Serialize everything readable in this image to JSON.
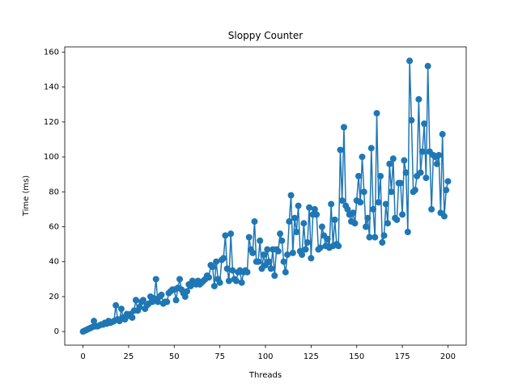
{
  "chart_data": {
    "type": "line",
    "title": "Sloppy Counter",
    "x_label": "Threads",
    "y_label": "Time (ms)",
    "color": "#1f77b4",
    "marker": "o",
    "x": [
      0,
      1,
      2,
      3,
      4,
      5,
      6,
      7,
      8,
      9,
      10,
      11,
      12,
      13,
      14,
      15,
      16,
      17,
      18,
      19,
      20,
      21,
      22,
      23,
      24,
      25,
      26,
      27,
      28,
      29,
      30,
      31,
      32,
      33,
      34,
      35,
      36,
      37,
      38,
      39,
      40,
      41,
      42,
      43,
      44,
      45,
      46,
      47,
      48,
      49,
      50,
      51,
      52,
      53,
      54,
      55,
      56,
      57,
      58,
      59,
      60,
      61,
      62,
      63,
      64,
      65,
      66,
      67,
      68,
      69,
      70,
      71,
      72,
      73,
      74,
      75,
      76,
      77,
      78,
      79,
      80,
      81,
      82,
      83,
      84,
      85,
      86,
      87,
      88,
      89,
      90,
      91,
      92,
      93,
      94,
      95,
      96,
      97,
      98,
      99,
      100,
      101,
      102,
      103,
      104,
      105,
      106,
      107,
      108,
      109,
      110,
      111,
      112,
      113,
      114,
      115,
      116,
      117,
      118,
      119,
      120,
      121,
      122,
      123,
      124,
      125,
      126,
      127,
      128,
      129,
      130,
      131,
      132,
      133,
      134,
      135,
      136,
      137,
      138,
      139,
      140,
      141,
      142,
      143,
      144,
      145,
      146,
      147,
      148,
      149,
      150,
      151,
      152,
      153,
      154,
      155,
      156,
      157,
      158,
      159,
      160,
      161,
      162,
      163,
      164,
      165,
      166,
      167,
      168,
      169,
      170,
      171,
      172,
      173,
      174,
      175,
      176,
      177,
      178,
      179,
      180,
      181,
      182,
      183,
      184,
      185,
      186,
      187,
      188,
      189,
      190,
      191,
      192,
      193,
      194,
      195,
      196,
      197,
      198,
      199,
      200
    ],
    "values": [
      0,
      0.5,
      1,
      1.5,
      2,
      2.5,
      6,
      3,
      3,
      3.5,
      4,
      4,
      5,
      4.5,
      6,
      5,
      5.5,
      6,
      15,
      7,
      6,
      13,
      8,
      7,
      10,
      9,
      10,
      8,
      12,
      18,
      12,
      14,
      17,
      18,
      13,
      15,
      16,
      20,
      17,
      19,
      30,
      17,
      20,
      21,
      16,
      17,
      17,
      22,
      23,
      24,
      24,
      18,
      25,
      30,
      24,
      22,
      20,
      23,
      27,
      26,
      29,
      28,
      27,
      29,
      27,
      28,
      29,
      30,
      32,
      31,
      38,
      37,
      26,
      40,
      30,
      28,
      41,
      42,
      55,
      36,
      29,
      56,
      35,
      30,
      29,
      34,
      35,
      28,
      34,
      35,
      34,
      54,
      47,
      45,
      63,
      40,
      40,
      52,
      36,
      44,
      38,
      47,
      40,
      36,
      47,
      32,
      47,
      46,
      56,
      52,
      40,
      34,
      44,
      63,
      78,
      45,
      65,
      57,
      72,
      46,
      44,
      62,
      47,
      51,
      71,
      42,
      67,
      70,
      67,
      47,
      48,
      60,
      55,
      49,
      53,
      48,
      73,
      49,
      64,
      50,
      49,
      104,
      75,
      117,
      72,
      70,
      67,
      63,
      68,
      62,
      75,
      89,
      74,
      100,
      80,
      60,
      65,
      54,
      105,
      70,
      54,
      125,
      74,
      89,
      51,
      55,
      73,
      62,
      96,
      80,
      99,
      65,
      64,
      85,
      85,
      67,
      98,
      91,
      57,
      155,
      121,
      80,
      81,
      89,
      133,
      91,
      103,
      119,
      88,
      152,
      103,
      70,
      101,
      100,
      96,
      101,
      68,
      113,
      66,
      81,
      86
    ],
    "xlim": [
      -10,
      210
    ],
    "xticks": [
      0,
      25,
      50,
      75,
      100,
      125,
      150,
      175,
      200
    ],
    "ylim": [
      -7.8,
      163
    ],
    "yticks": [
      0,
      20,
      40,
      60,
      80,
      100,
      120,
      140,
      160
    ]
  }
}
